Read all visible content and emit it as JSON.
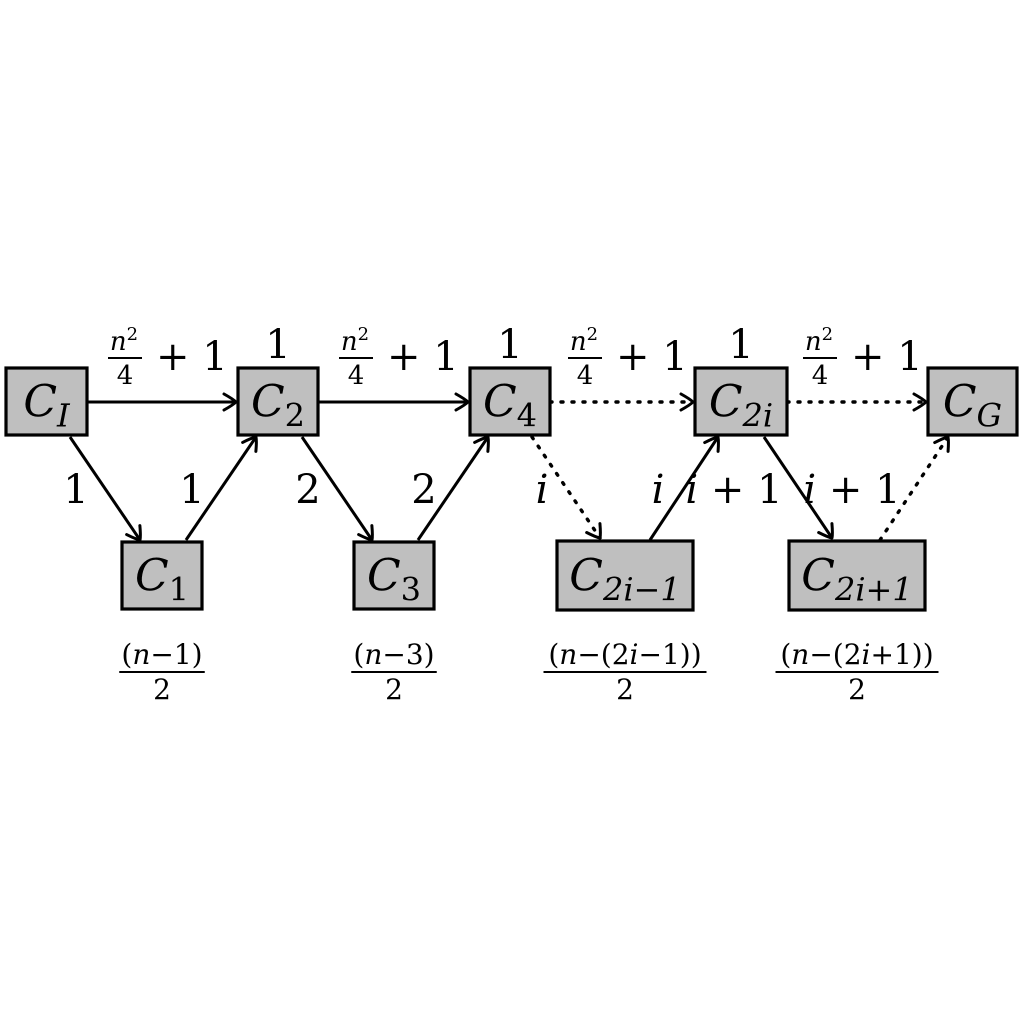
{
  "nodes": [
    {
      "id": "CI",
      "base": "C",
      "sub": "I"
    },
    {
      "id": "C2",
      "base": "C",
      "sub": "2"
    },
    {
      "id": "C4",
      "base": "C",
      "sub": "4"
    },
    {
      "id": "C2i",
      "base": "C",
      "sub": "2i"
    },
    {
      "id": "CG",
      "base": "C",
      "sub": "G"
    },
    {
      "id": "C1",
      "base": "C",
      "sub": "1"
    },
    {
      "id": "C3",
      "base": "C",
      "sub": "3"
    },
    {
      "id": "C2im1",
      "base": "C",
      "sub": "2i−1"
    },
    {
      "id": "C2ip1",
      "base": "C",
      "sub": "2i+1"
    }
  ],
  "top_edge_label": {
    "num": "n",
    "sup": "2",
    "den": "4",
    "tail": "+ 1"
  },
  "top_edges": [
    {
      "from": "CI",
      "to": "C2",
      "style": "solid"
    },
    {
      "from": "C2",
      "to": "C4",
      "style": "solid"
    },
    {
      "from": "C4",
      "to": "C2i",
      "style": "dotted"
    },
    {
      "from": "C2i",
      "to": "CG",
      "style": "dotted"
    }
  ],
  "node_weights": [
    {
      "node": "C2",
      "label": "1"
    },
    {
      "node": "C4",
      "label": "1"
    },
    {
      "node": "C2i",
      "label": "1"
    }
  ],
  "diagonal_edges": [
    {
      "from": "CI",
      "to": "C1",
      "label": "1",
      "style": "solid"
    },
    {
      "from": "C1",
      "to": "C2",
      "label": "1",
      "style": "solid"
    },
    {
      "from": "C2",
      "to": "C3",
      "label": "2",
      "style": "solid"
    },
    {
      "from": "C3",
      "to": "C4",
      "label": "2",
      "style": "solid"
    },
    {
      "from": "C4",
      "to": "C2im1",
      "label": "i",
      "style": "dotted"
    },
    {
      "from": "C2im1",
      "to": "C2i",
      "label": "i",
      "style": "solid"
    },
    {
      "from": "C2i",
      "to": "C2ip1",
      "label": "i + 1",
      "style": "solid"
    },
    {
      "from": "C2ip1",
      "to": "CG",
      "label": "i + 1",
      "style": "dotted"
    }
  ],
  "bottom_fractions": [
    {
      "node": "C1",
      "num": "(n−1)",
      "den": "2"
    },
    {
      "node": "C3",
      "num": "(n−3)",
      "den": "2"
    },
    {
      "node": "C2im1",
      "num": "(n−(2i−1))",
      "den": "2"
    },
    {
      "node": "C2ip1",
      "num": "(n−(2i+1))",
      "den": "2"
    }
  ]
}
